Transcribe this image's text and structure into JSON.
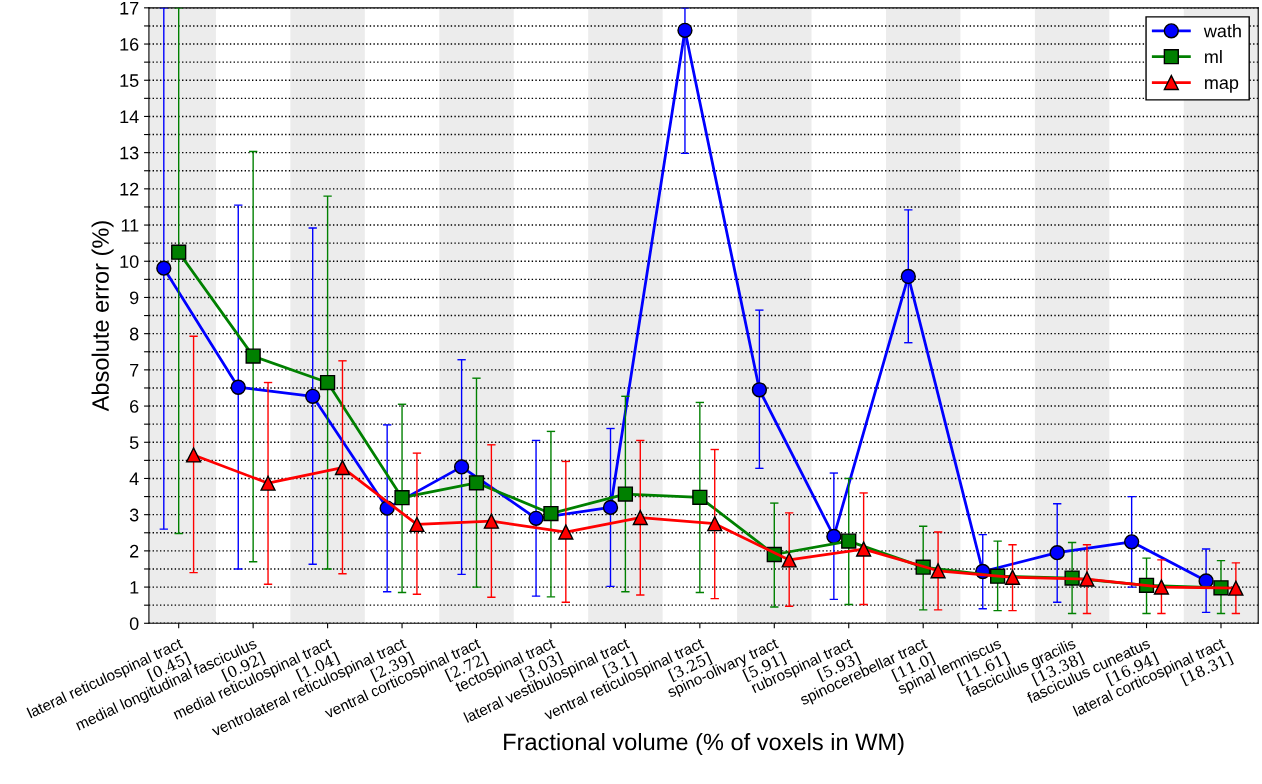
{
  "chart_data": {
    "type": "line",
    "xlabel": "Fractional volume (% of voxels in WM)",
    "ylabel": "Absolute error (%)",
    "categories": [
      "lateral reticulospinal tract\n[0.45]",
      "medial longitudinal fasciculus\n[0.92]",
      "medial reticulospinal tract\n[1.04]",
      "ventrolateral reticulospinal tract\n[2.39]",
      "ventral corticospinal tract\n[2.72]",
      "tectospinal tract\n[3.03]",
      "lateral vestibulospinal tract\n[3.1]",
      "ventral reticulospinal tract\n[3.25]",
      "spino-olivary tract\n[5.91]",
      "rubrospinal tract\n[5.93]",
      "spinocerebellar tract\n[11.0]",
      "spinal lemniscus\n[11.61]",
      "fasciculus gracilis\n[13.38]",
      "fasciculus cuneatus\n[16.94]",
      "lateral corticospinal tract\n[18.31]"
    ],
    "series": [
      {
        "name": "wath",
        "color": "#0000ff",
        "marker": "circle",
        "values": [
          9.81,
          6.52,
          6.27,
          3.18,
          4.32,
          2.9,
          3.2,
          16.38,
          6.45,
          2.4,
          9.58,
          1.43,
          1.95,
          2.25,
          1.17
        ],
        "errors": [
          [
            2.6,
            17
          ],
          [
            1.5,
            11.55
          ],
          [
            1.63,
            10.92
          ],
          [
            0.87,
            5.48
          ],
          [
            1.35,
            7.28
          ],
          [
            0.75,
            5.05
          ],
          [
            1.02,
            5.38
          ],
          [
            12.98,
            17
          ],
          [
            4.28,
            8.65
          ],
          [
            0.66,
            4.15
          ],
          [
            7.75,
            11.42
          ],
          [
            0.4,
            2.45
          ],
          [
            0.58,
            3.3
          ],
          [
            1.0,
            3.5
          ],
          [
            0.3,
            2.05
          ]
        ]
      },
      {
        "name": "ml",
        "color": "#008000",
        "marker": "square",
        "values": [
          10.25,
          7.38,
          6.65,
          3.47,
          3.88,
          3.03,
          3.57,
          3.48,
          1.9,
          2.27,
          1.55,
          1.3,
          1.25,
          1.05,
          0.98
        ],
        "errors": [
          [
            2.48,
            17
          ],
          [
            1.7,
            13.03
          ],
          [
            1.5,
            11.8
          ],
          [
            0.85,
            6.05
          ],
          [
            1.0,
            6.77
          ],
          [
            0.73,
            5.3
          ],
          [
            0.87,
            6.27
          ],
          [
            0.85,
            6.1
          ],
          [
            0.45,
            3.32
          ],
          [
            0.52,
            4.0
          ],
          [
            0.37,
            2.68
          ],
          [
            0.35,
            2.27
          ],
          [
            0.27,
            2.23
          ],
          [
            0.27,
            1.8
          ],
          [
            0.27,
            1.73
          ]
        ]
      },
      {
        "name": "map",
        "color": "#ff0000",
        "marker": "triangle",
        "values": [
          4.65,
          3.87,
          4.3,
          2.73,
          2.82,
          2.52,
          2.92,
          2.75,
          1.75,
          2.05,
          1.45,
          1.27,
          1.22,
          1.0,
          0.97
        ],
        "errors": [
          [
            1.4,
            7.93
          ],
          [
            1.08,
            6.65
          ],
          [
            1.37,
            7.25
          ],
          [
            0.8,
            4.7
          ],
          [
            0.72,
            4.93
          ],
          [
            0.58,
            4.47
          ],
          [
            0.78,
            5.05
          ],
          [
            0.68,
            4.8
          ],
          [
            0.47,
            3.05
          ],
          [
            0.52,
            3.6
          ],
          [
            0.37,
            2.52
          ],
          [
            0.35,
            2.17
          ],
          [
            0.27,
            2.17
          ],
          [
            0.27,
            1.75
          ],
          [
            0.27,
            1.67
          ]
        ]
      }
    ],
    "ylim": [
      0,
      17
    ],
    "yticks": [
      0,
      {
        "value": 0.5,
        "label": null
      },
      1,
      {
        "value": 1.5,
        "label": null
      },
      2,
      {
        "value": 2.5,
        "label": null
      },
      3,
      {
        "value": 3.5,
        "label": null
      },
      4,
      {
        "value": 4.5,
        "label": null
      },
      5,
      {
        "value": 5.5,
        "label": null
      },
      6,
      {
        "value": 6.5,
        "label": null
      },
      7,
      {
        "value": 7.5,
        "label": null
      },
      8,
      {
        "value": 8.5,
        "label": null
      },
      9,
      {
        "value": 9.5,
        "label": null
      },
      10,
      {
        "value": 10.5,
        "label": null
      },
      11,
      {
        "value": 11.5,
        "label": null
      },
      12,
      {
        "value": 12.5,
        "label": null
      },
      13,
      {
        "value": 13.5,
        "label": null
      },
      14,
      {
        "value": 14.5,
        "label": null
      },
      15,
      {
        "value": 15.5,
        "label": null
      },
      16,
      {
        "value": 16.5,
        "label": null
      },
      17
    ],
    "grid": "y",
    "legend": "top right",
    "line_style": "solid"
  }
}
